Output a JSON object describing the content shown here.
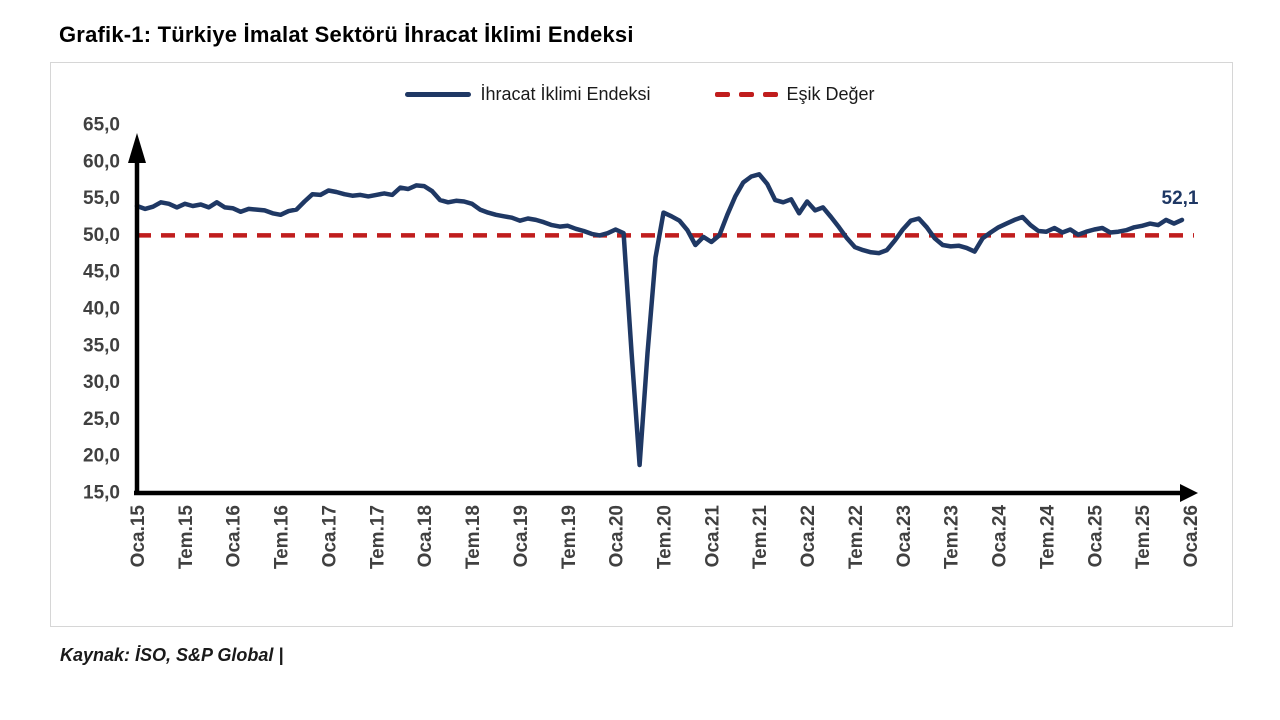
{
  "title": "Grafik-1: Türkiye İmalat Sektörü İhracat İklimi Endeksi",
  "source": "Kaynak: İSO, S&P Global |",
  "legend": {
    "series_label": "İhracat İklimi Endeksi",
    "threshold_label": "Eşik Değer"
  },
  "colors": {
    "series": "#1f3864",
    "threshold": "#c01d1d",
    "axis": "#000000",
    "tick_text": "#404040",
    "annotation": "#1f3864"
  },
  "chart_data": {
    "type": "line",
    "title": "Grafik-1: Türkiye İmalat Sektörü İhracat İklimi Endeksi",
    "xlabel": "",
    "ylabel": "",
    "ylim": [
      15,
      65
    ],
    "grid": false,
    "legend_position": "top-center",
    "y_tick_labels": [
      "65,0",
      "60,0",
      "55,0",
      "50,0",
      "45,0",
      "40,0",
      "35,0",
      "30,0",
      "25,0",
      "20,0",
      "15,0"
    ],
    "x_tick_labels": [
      "Oca.15",
      "Tem.15",
      "Oca.16",
      "Tem.16",
      "Oca.17",
      "Tem.17",
      "Oca.18",
      "Tem.18",
      "Oca.19",
      "Tem.19",
      "Oca.20",
      "Tem.20",
      "Oca.21",
      "Tem.21",
      "Oca.22",
      "Tem.22",
      "Oca.23",
      "Tem.23",
      "Oca.24",
      "Tem.24",
      "Oca.25",
      "Tem.25",
      "Oca.26"
    ],
    "threshold": {
      "label": "Eşik Değer",
      "value": 50.0
    },
    "last_value_label": "52,1",
    "series": [
      {
        "name": "İhracat İklimi Endeksi",
        "start": "Oca.15",
        "frequency": "monthly",
        "values": [
          54.0,
          53.6,
          53.9,
          54.5,
          54.3,
          53.8,
          54.3,
          54.0,
          54.2,
          53.8,
          54.5,
          53.8,
          53.7,
          53.2,
          53.6,
          53.5,
          53.4,
          53.0,
          52.8,
          53.3,
          53.5,
          54.6,
          55.6,
          55.5,
          56.1,
          55.9,
          55.6,
          55.4,
          55.5,
          55.3,
          55.5,
          55.7,
          55.5,
          56.5,
          56.3,
          56.8,
          56.7,
          56.0,
          54.8,
          54.5,
          54.7,
          54.6,
          54.3,
          53.5,
          53.1,
          52.8,
          52.6,
          52.4,
          52.0,
          52.3,
          52.1,
          51.8,
          51.4,
          51.2,
          51.3,
          50.9,
          50.6,
          50.2,
          50.0,
          50.3,
          50.8,
          50.3,
          34.0,
          18.8,
          34.0,
          47.0,
          53.1,
          52.6,
          52.0,
          50.7,
          48.7,
          49.8,
          49.1,
          50.0,
          52.8,
          55.3,
          57.2,
          58.0,
          58.3,
          57.0,
          54.8,
          54.5,
          54.9,
          53.0,
          54.6,
          53.4,
          53.8,
          52.5,
          51.1,
          49.6,
          48.4,
          48.0,
          47.7,
          47.6,
          48.0,
          49.3,
          50.8,
          52.0,
          52.3,
          51.1,
          49.6,
          48.7,
          48.5,
          48.6,
          48.3,
          47.8,
          49.6,
          50.4,
          51.1,
          51.6,
          52.1,
          52.5,
          51.4,
          50.6,
          50.5,
          51.0,
          50.4,
          50.8,
          50.1,
          50.5,
          50.8,
          51.0,
          50.4,
          50.5,
          50.7,
          51.1,
          51.3,
          51.6,
          51.4,
          52.1,
          51.6,
          52.1
        ]
      }
    ]
  }
}
